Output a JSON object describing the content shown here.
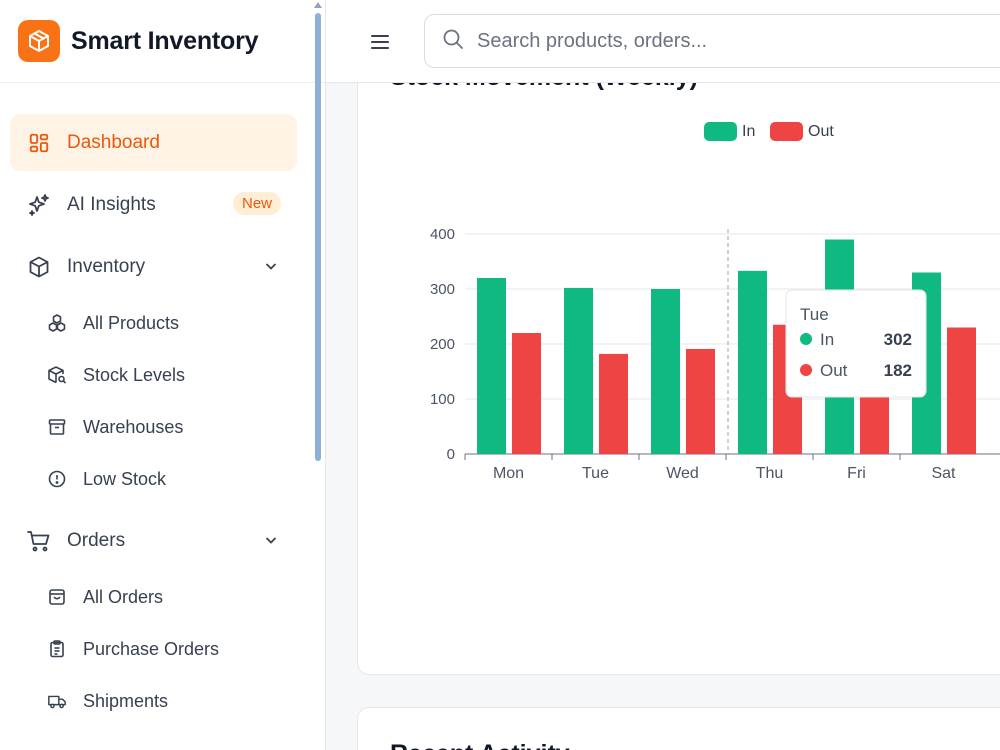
{
  "brand": {
    "name": "Smart Inventory",
    "icon": "package-icon",
    "color": "#f97316"
  },
  "search": {
    "placeholder": "Search products, orders..."
  },
  "nav": {
    "dashboard": "Dashboard",
    "ai_insights": "AI Insights",
    "ai_badge": "New",
    "inventory": "Inventory",
    "inventory_items": [
      "All Products",
      "Stock Levels",
      "Warehouses",
      "Low Stock"
    ],
    "orders": "Orders",
    "orders_items": [
      "All Orders",
      "Purchase Orders",
      "Shipments"
    ]
  },
  "main": {
    "chart_title": "Stock Movement (Weekly)",
    "activity_title": "Recent Activity"
  },
  "chart_data": {
    "type": "bar",
    "title": "Stock Movement (Weekly)",
    "categories": [
      "Mon",
      "Tue",
      "Wed",
      "Thu",
      "Fri",
      "Sat"
    ],
    "series": [
      {
        "name": "In",
        "values": [
          320,
          302,
          300,
          333,
          390,
          330
        ],
        "color": "#10b981"
      },
      {
        "name": "Out",
        "values": [
          220,
          182,
          191,
          235,
          190,
          230
        ],
        "color": "#ef4444"
      }
    ],
    "ylim": [
      0,
      400
    ],
    "yticks": [
      0,
      100,
      200,
      300,
      400
    ],
    "grid": true,
    "legend": "top-center",
    "tooltip": {
      "category": "Tue",
      "rows": [
        {
          "name": "In",
          "value": "302"
        },
        {
          "name": "Out",
          "value": "182"
        }
      ]
    }
  }
}
